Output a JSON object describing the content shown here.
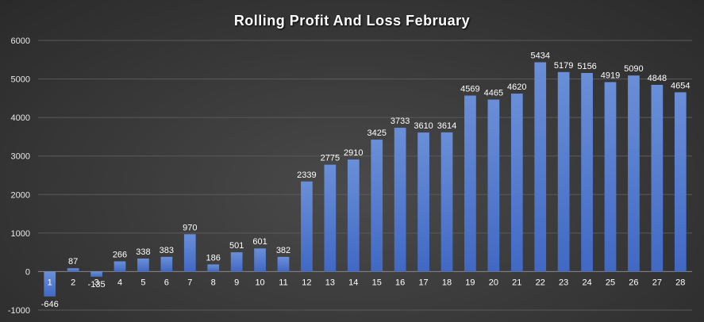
{
  "chart_data": {
    "type": "bar",
    "title": "Rolling Profit And Loss February",
    "xlabel": "",
    "ylabel": "",
    "ylim": [
      -1000,
      6000
    ],
    "yticks": [
      -1000,
      0,
      1000,
      2000,
      3000,
      4000,
      5000,
      6000
    ],
    "categories": [
      "1",
      "2",
      "3",
      "4",
      "5",
      "6",
      "7",
      "8",
      "9",
      "10",
      "11",
      "12",
      "13",
      "14",
      "15",
      "16",
      "17",
      "18",
      "19",
      "20",
      "21",
      "22",
      "23",
      "24",
      "25",
      "26",
      "27",
      "28"
    ],
    "values": [
      -646,
      87,
      -135,
      266,
      338,
      383,
      970,
      186,
      501,
      601,
      382,
      2339,
      2775,
      2910,
      3425,
      3733,
      3610,
      3614,
      4569,
      4465,
      4620,
      5434,
      5179,
      5156,
      4919,
      5090,
      4848,
      4654
    ],
    "grid": true,
    "legend": "none",
    "colors": {
      "bar_top": "#6a8fd8",
      "bar_bottom": "#4169c4",
      "background": "#3a3a3a"
    }
  }
}
